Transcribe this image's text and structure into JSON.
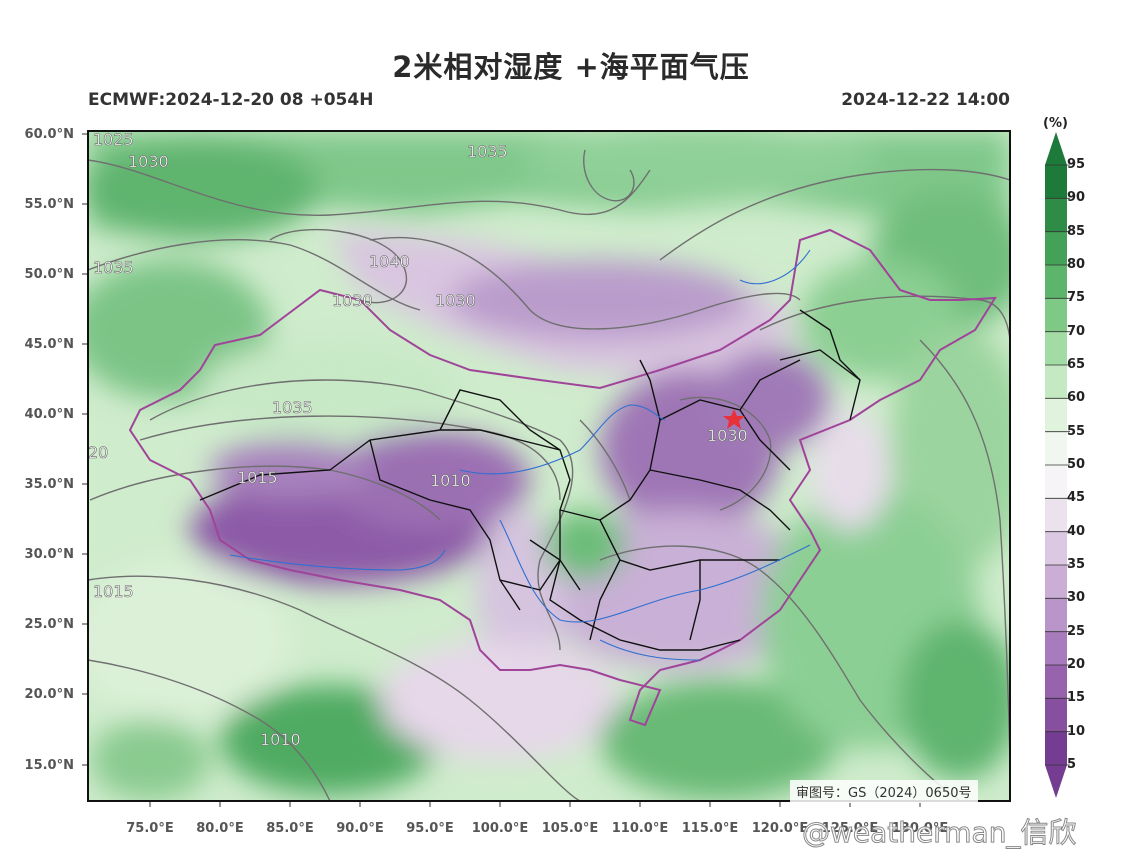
{
  "title": "2米相对湿度 +海平面气压",
  "subtitle_left": "ECMWF:2024-12-20 08 +054H",
  "subtitle_right": "2024-12-22 14:00",
  "map": {
    "lat_labels": [
      "60.0°N",
      "55.0°N",
      "50.0°N",
      "45.0°N",
      "40.0°N",
      "35.0°N",
      "30.0°N",
      "25.0°N",
      "20.0°N",
      "15.0°N"
    ],
    "lon_labels": [
      "75.0°E",
      "80.0°E",
      "85.0°E",
      "90.0°E",
      "95.0°E",
      "100.0°E",
      "105.0°E",
      "110.0°E",
      "115.0°E",
      "120.0°E",
      "125.0°E",
      "130.0°E"
    ],
    "isobar_labels": [
      "1025",
      "1030",
      "1035",
      "1035",
      "1040",
      "1030",
      "1030",
      "1035",
      "20",
      "1015",
      "1010",
      "1030",
      "1015",
      "1010"
    ],
    "marker": "red-star-beijing"
  },
  "colorbar": {
    "unit": "(%)",
    "labels": [
      "95",
      "90",
      "85",
      "80",
      "75",
      "70",
      "65",
      "60",
      "55",
      "50",
      "45",
      "40",
      "35",
      "30",
      "25",
      "20",
      "15",
      "10",
      "5"
    ],
    "colors": [
      "#1e7a3a",
      "#2f8c46",
      "#44a258",
      "#5db56c",
      "#7ec986",
      "#a3dba5",
      "#c4e9c3",
      "#dff3dd",
      "#f0f7ee",
      "#f6f4f6",
      "#ece2ee",
      "#dcc8e2",
      "#cbaed6",
      "#b995c9",
      "#a87cbc",
      "#9763ad",
      "#86509f",
      "#743d91"
    ]
  },
  "stamp": "审图号：GS（2024）0650号",
  "watermark": "@weatherman_信欣"
}
